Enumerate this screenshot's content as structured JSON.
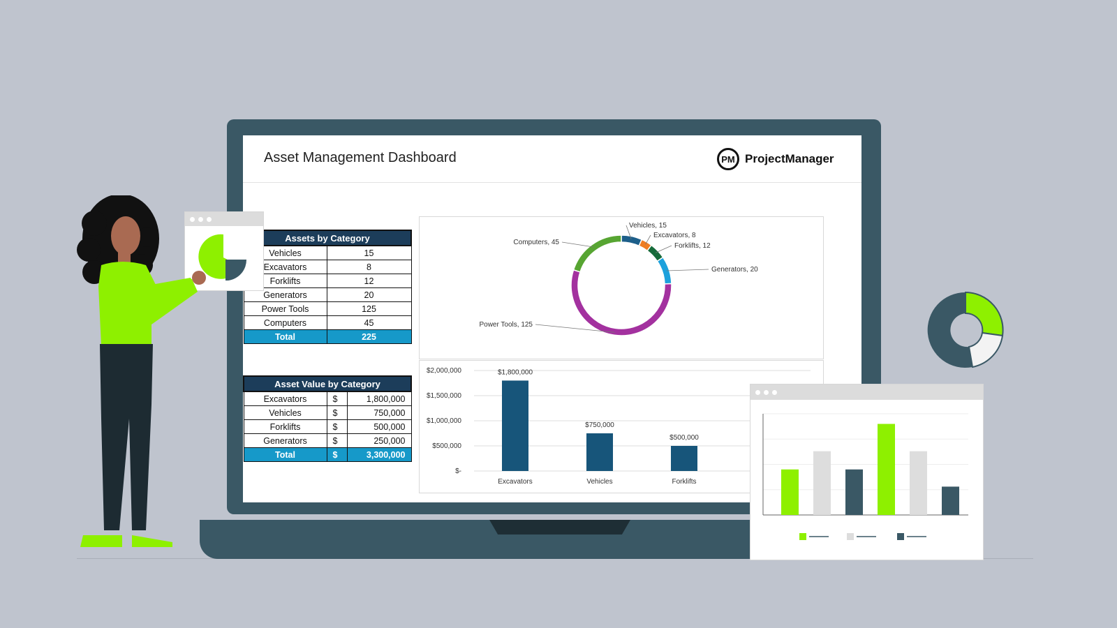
{
  "dashboard": {
    "title": "Asset Management Dashboard",
    "brand_logo_text": "PM",
    "brand_name": "ProjectManager"
  },
  "assets_table": {
    "header": "Assets by Category",
    "rows": [
      {
        "label": "Vehicles",
        "value": "15"
      },
      {
        "label": "Excavators",
        "value": "8"
      },
      {
        "label": "Forklifts",
        "value": "12"
      },
      {
        "label": "Generators",
        "value": "20"
      },
      {
        "label": "Power Tools",
        "value": "125"
      },
      {
        "label": "Computers",
        "value": "45"
      }
    ],
    "total_label": "Total",
    "total_value": "225"
  },
  "value_table": {
    "header": "Asset Value by Category",
    "currency": "$",
    "rows": [
      {
        "label": "Excavators",
        "value": "1,800,000"
      },
      {
        "label": "Vehicles",
        "value": "750,000"
      },
      {
        "label": "Forklifts",
        "value": "500,000"
      },
      {
        "label": "Generators",
        "value": "250,000"
      }
    ],
    "total_label": "Total",
    "total_value": "3,300,000"
  },
  "colors": {
    "table_header": "#1c3d5a",
    "table_total": "#1699c9",
    "bar": "#17557a",
    "accent_green": "#8ef000",
    "dark_slate": "#3a5865"
  },
  "chart_data": [
    {
      "type": "pie",
      "categories": [
        "Vehicles",
        "Excavators",
        "Forklifts",
        "Generators",
        "Power Tools",
        "Computers"
      ],
      "values": [
        15,
        8,
        12,
        20,
        125,
        45
      ],
      "labels": [
        "Vehicles, 15",
        "Excavators, 8",
        "Forklifts, 12",
        "Generators, 20",
        "Power Tools, 125",
        "Computers, 45"
      ],
      "colors": [
        "#1d5f8a",
        "#ef7d22",
        "#176b3b",
        "#1da1dc",
        "#a3319f",
        "#57a532"
      ],
      "title": ""
    },
    {
      "type": "bar",
      "categories": [
        "Excavators",
        "Vehicles",
        "Forklifts"
      ],
      "values": [
        1800000,
        750000,
        500000
      ],
      "data_labels": [
        "$1,800,000",
        "$750,000",
        "$500,000"
      ],
      "ytick_labels": [
        "$2,000,000",
        "$1,500,000",
        "$1,000,000",
        "$500,000",
        "$-"
      ],
      "ylim": [
        0,
        2000000
      ],
      "grid": true,
      "title": "",
      "xlabel": "",
      "ylabel": ""
    },
    {
      "type": "bar",
      "categories": [
        "",
        "",
        "",
        "",
        "",
        ""
      ],
      "values": [
        45,
        63,
        45,
        90,
        63,
        28
      ],
      "colors": [
        "#8ef000",
        "#dddddd",
        "#3a5865",
        "#8ef000",
        "#dddddd",
        "#3a5865"
      ],
      "ylim": [
        0,
        100
      ],
      "grid": true,
      "title": ""
    }
  ]
}
